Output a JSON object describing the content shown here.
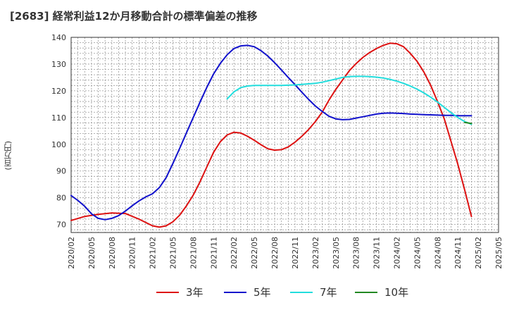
{
  "chart_data": {
    "type": "line",
    "title": "[2683]  経常利益12か月移動合計の標準偏差の推移",
    "ylabel": "(百万円)",
    "xlabel": "",
    "ylim": [
      67,
      140
    ],
    "y_ticks": [
      70,
      80,
      90,
      100,
      110,
      120,
      130,
      140
    ],
    "x_ticks": [
      "2020/02",
      "2020/05",
      "2020/08",
      "2020/11",
      "2021/02",
      "2021/05",
      "2021/08",
      "2021/11",
      "2022/02",
      "2022/05",
      "2022/08",
      "2022/11",
      "2023/02",
      "2023/05",
      "2023/08",
      "2023/11",
      "2024/02",
      "2024/05",
      "2024/08",
      "2024/11",
      "2025/02",
      "2025/05"
    ],
    "grid": true,
    "legend_position": "bottom",
    "series": [
      {
        "name": "3年",
        "color": "#dd1111",
        "points": [
          [
            "2020/02",
            71.5
          ],
          [
            "2020/04",
            73.0
          ],
          [
            "2020/06",
            73.8
          ],
          [
            "2020/08",
            74.3
          ],
          [
            "2020/10",
            74.1
          ],
          [
            "2020/12",
            72.0
          ],
          [
            "2021/02",
            69.5
          ],
          [
            "2021/03",
            69.0
          ],
          [
            "2021/04",
            69.5
          ],
          [
            "2021/05",
            71.0
          ],
          [
            "2021/06",
            73.5
          ],
          [
            "2021/07",
            77.0
          ],
          [
            "2021/08",
            81.0
          ],
          [
            "2021/09",
            86.0
          ],
          [
            "2021/10",
            91.5
          ],
          [
            "2021/11",
            97.0
          ],
          [
            "2021/12",
            101.0
          ],
          [
            "2022/01",
            103.5
          ],
          [
            "2022/02",
            104.5
          ],
          [
            "2022/03",
            104.2
          ],
          [
            "2022/04",
            103.0
          ],
          [
            "2022/05",
            101.5
          ],
          [
            "2022/06",
            99.8
          ],
          [
            "2022/07",
            98.3
          ],
          [
            "2022/08",
            97.8
          ],
          [
            "2022/09",
            98.0
          ],
          [
            "2022/10",
            99.0
          ],
          [
            "2022/11",
            100.8
          ],
          [
            "2022/12",
            103.0
          ],
          [
            "2023/01",
            105.5
          ],
          [
            "2023/02",
            108.5
          ],
          [
            "2023/03",
            112.0
          ],
          [
            "2023/04",
            116.5
          ],
          [
            "2023/05",
            120.5
          ],
          [
            "2023/06",
            124.0
          ],
          [
            "2023/07",
            127.5
          ],
          [
            "2023/08",
            130.2
          ],
          [
            "2023/09",
            132.5
          ],
          [
            "2023/10",
            134.3
          ],
          [
            "2023/11",
            135.8
          ],
          [
            "2023/12",
            137.0
          ],
          [
            "2024/01",
            137.8
          ],
          [
            "2024/02",
            137.6
          ],
          [
            "2024/03",
            136.5
          ],
          [
            "2024/04",
            134.0
          ],
          [
            "2024/05",
            131.0
          ],
          [
            "2024/06",
            127.0
          ],
          [
            "2024/07",
            122.0
          ],
          [
            "2024/08",
            116.0
          ],
          [
            "2024/09",
            109.5
          ],
          [
            "2024/10",
            101.0
          ],
          [
            "2024/11",
            92.5
          ],
          [
            "2024/12",
            83.0
          ],
          [
            "2025/01",
            73.0
          ]
        ]
      },
      {
        "name": "5年",
        "color": "#1111cc",
        "points": [
          [
            "2020/02",
            80.8
          ],
          [
            "2020/03",
            79.0
          ],
          [
            "2020/04",
            76.8
          ],
          [
            "2020/05",
            74.0
          ],
          [
            "2020/06",
            72.3
          ],
          [
            "2020/07",
            71.8
          ],
          [
            "2020/08",
            72.3
          ],
          [
            "2020/09",
            73.3
          ],
          [
            "2020/10",
            75.0
          ],
          [
            "2020/11",
            77.0
          ],
          [
            "2020/12",
            78.8
          ],
          [
            "2021/01",
            80.3
          ],
          [
            "2021/02",
            81.5
          ],
          [
            "2021/03",
            83.8
          ],
          [
            "2021/04",
            87.5
          ],
          [
            "2021/05",
            92.8
          ],
          [
            "2021/06",
            98.5
          ],
          [
            "2021/07",
            104.3
          ],
          [
            "2021/08",
            110.0
          ],
          [
            "2021/09",
            115.8
          ],
          [
            "2021/10",
            121.3
          ],
          [
            "2021/11",
            126.3
          ],
          [
            "2021/12",
            130.3
          ],
          [
            "2022/01",
            133.5
          ],
          [
            "2022/02",
            135.8
          ],
          [
            "2022/03",
            136.8
          ],
          [
            "2022/04",
            137.0
          ],
          [
            "2022/05",
            136.5
          ],
          [
            "2022/06",
            135.0
          ],
          [
            "2022/07",
            133.0
          ],
          [
            "2022/08",
            130.5
          ],
          [
            "2022/09",
            127.8
          ],
          [
            "2022/10",
            125.0
          ],
          [
            "2022/11",
            122.3
          ],
          [
            "2022/12",
            119.5
          ],
          [
            "2023/01",
            116.8
          ],
          [
            "2023/02",
            114.3
          ],
          [
            "2023/03",
            112.3
          ],
          [
            "2023/04",
            110.5
          ],
          [
            "2023/05",
            109.5
          ],
          [
            "2023/06",
            109.2
          ],
          [
            "2023/07",
            109.3
          ],
          [
            "2023/08",
            109.8
          ],
          [
            "2023/09",
            110.3
          ],
          [
            "2023/10",
            110.8
          ],
          [
            "2023/11",
            111.3
          ],
          [
            "2023/12",
            111.6
          ],
          [
            "2024/01",
            111.7
          ],
          [
            "2024/02",
            111.6
          ],
          [
            "2024/03",
            111.5
          ],
          [
            "2024/04",
            111.3
          ],
          [
            "2024/05",
            111.2
          ],
          [
            "2024/06",
            111.1
          ],
          [
            "2024/07",
            111.0
          ],
          [
            "2024/08",
            110.9
          ],
          [
            "2024/09",
            110.8
          ],
          [
            "2024/10",
            110.8
          ],
          [
            "2024/11",
            110.7
          ],
          [
            "2024/12",
            110.7
          ],
          [
            "2025/01",
            110.7
          ]
        ]
      },
      {
        "name": "7年",
        "color": "#22dddd",
        "points": [
          [
            "2022/01",
            117.0
          ],
          [
            "2022/02",
            119.6
          ],
          [
            "2022/03",
            121.2
          ],
          [
            "2022/04",
            121.8
          ],
          [
            "2022/05",
            122.0
          ],
          [
            "2022/06",
            122.0
          ],
          [
            "2022/07",
            122.0
          ],
          [
            "2022/08",
            122.0
          ],
          [
            "2022/09",
            122.0
          ],
          [
            "2022/10",
            122.1
          ],
          [
            "2022/11",
            122.2
          ],
          [
            "2022/12",
            122.4
          ],
          [
            "2023/01",
            122.6
          ],
          [
            "2023/02",
            122.8
          ],
          [
            "2023/03",
            123.2
          ],
          [
            "2023/04",
            123.8
          ],
          [
            "2023/05",
            124.4
          ],
          [
            "2023/06",
            125.0
          ],
          [
            "2023/07",
            125.3
          ],
          [
            "2023/08",
            125.4
          ],
          [
            "2023/09",
            125.4
          ],
          [
            "2023/10",
            125.3
          ],
          [
            "2023/11",
            125.1
          ],
          [
            "2023/12",
            124.8
          ],
          [
            "2024/01",
            124.3
          ],
          [
            "2024/02",
            123.6
          ],
          [
            "2024/03",
            122.8
          ],
          [
            "2024/04",
            121.8
          ],
          [
            "2024/05",
            120.6
          ],
          [
            "2024/06",
            119.2
          ],
          [
            "2024/07",
            117.6
          ],
          [
            "2024/08",
            115.8
          ],
          [
            "2024/09",
            113.8
          ],
          [
            "2024/10",
            111.8
          ],
          [
            "2024/11",
            110.0
          ],
          [
            "2024/12",
            108.5
          ],
          [
            "2025/01",
            107.5
          ]
        ]
      },
      {
        "name": "10年",
        "color": "#228822",
        "points": [
          [
            "2024/12",
            108.2
          ],
          [
            "2025/01",
            107.8
          ]
        ]
      }
    ]
  }
}
